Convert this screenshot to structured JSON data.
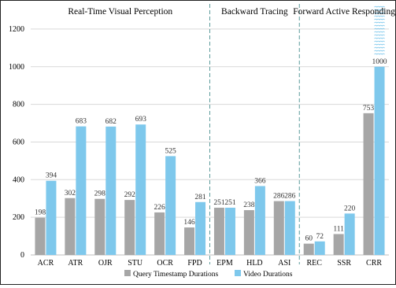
{
  "chart_data": {
    "type": "bar",
    "title": "",
    "xlabel": "",
    "ylabel": "",
    "ylim": [
      0,
      1300
    ],
    "yticks": [
      0,
      200,
      400,
      600,
      800,
      1000,
      1200
    ],
    "grid": true,
    "legend_position": "bottom",
    "categories": [
      "ACR",
      "ATR",
      "OJR",
      "STU",
      "OCR",
      "FPD",
      "EPM",
      "HLD",
      "ASI",
      "REC",
      "SSR",
      "CRR"
    ],
    "series": [
      {
        "name": "Query Timestamp Durations",
        "color": "#a6a6a6",
        "values": [
          198,
          302,
          298,
          292,
          226,
          146,
          251,
          238,
          286,
          60,
          111,
          753
        ]
      },
      {
        "name": "Video Durations",
        "color": "#7ec8ec",
        "values": [
          394,
          683,
          682,
          693,
          525,
          281,
          251,
          366,
          286,
          72,
          220,
          1000
        ]
      }
    ],
    "groups": [
      {
        "label": "Real-Time Visual Perception",
        "categories": [
          "ACR",
          "ATR",
          "OJR",
          "STU",
          "OCR",
          "FPD"
        ]
      },
      {
        "label": "Backward Tracing",
        "categories": [
          "EPM",
          "HLD",
          "ASI"
        ]
      },
      {
        "label": "Forward Active Responding",
        "categories": [
          "REC",
          "SSR",
          "CRR"
        ]
      }
    ],
    "annotations": [
      {
        "category": "CRR",
        "series": "Video Durations",
        "note": "bar truncated (wavy break above)"
      }
    ]
  },
  "colors": {
    "grid": "#d9d9d9",
    "axis": "#bfbfbf",
    "divider": "#5a9a9a",
    "text": "#000000",
    "label_text": "#333333"
  }
}
